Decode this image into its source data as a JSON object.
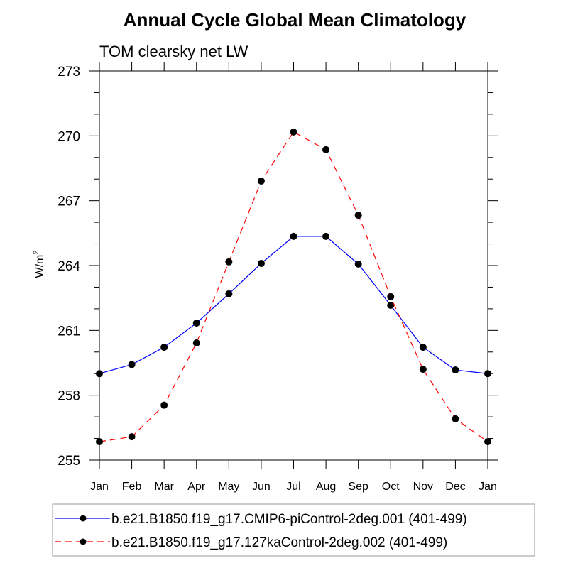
{
  "chart_data": {
    "type": "line",
    "title": "Annual Cycle Global Mean Climatology",
    "subtitle": "TOM clearsky net LW",
    "xlabel": "",
    "ylabel": "W/m",
    "ylabel_superscript": "2",
    "categories": [
      "Jan",
      "Feb",
      "Mar",
      "Apr",
      "May",
      "Jun",
      "Jul",
      "Aug",
      "Sep",
      "Oct",
      "Nov",
      "Dec",
      "Jan"
    ],
    "ylim": [
      255,
      273
    ],
    "yticks": [
      255,
      258,
      261,
      264,
      267,
      270,
      273
    ],
    "yticks_labels": [
      "255",
      "258",
      "261",
      "264",
      "267",
      "270",
      "273"
    ],
    "legend_position": "bottom",
    "grid": false,
    "series": [
      {
        "name": "b.e21.B1850.f19_g17.CMIP6-piControl-2deg.001 (401-499)",
        "color": "#0000ff",
        "dash": "solid",
        "values": [
          259.0,
          259.42,
          260.22,
          261.34,
          262.69,
          264.1,
          265.35,
          265.35,
          264.07,
          262.16,
          260.22,
          259.17,
          259.0
        ]
      },
      {
        "name": "b.e21.B1850.f19_g17.127kaControl-2deg.002 (401-499)",
        "color": "#ff0000",
        "dash": "dashed",
        "values": [
          255.85,
          256.08,
          257.54,
          260.42,
          264.17,
          267.91,
          270.18,
          269.36,
          266.33,
          262.56,
          259.2,
          256.91,
          255.85
        ]
      }
    ]
  }
}
